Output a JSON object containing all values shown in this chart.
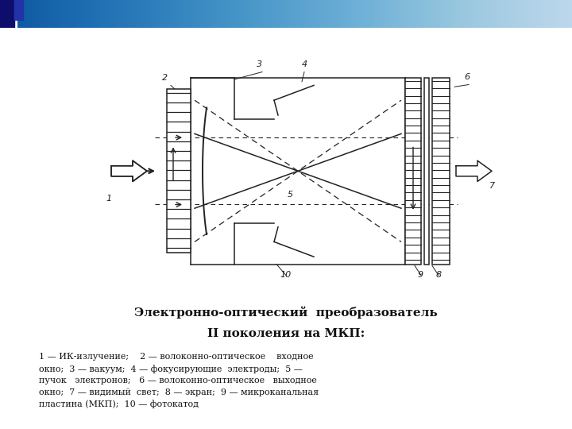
{
  "title_line1": "Электронно-оптический  преобразователь",
  "title_line2": "II поколения на МКП:",
  "caption_text": "1 — ИК-излучение;    2 — волоконно-оптическое    входное\nокно;  3 — вакуум;  4 — фокусирующие  электроды;  5 —\nпучок   электронов;   6 — волоконно-оптическое   выходное\nокно;  7 — видимый  свет;  8 — экран;  9 — микроканальная\nпластина (МКП);  10 — фотокатод",
  "bg_color": "#ffffff",
  "line_color": "#222222",
  "fig_width": 7.2,
  "fig_height": 5.4,
  "header_dark": "#1a1a7a",
  "header_mid": "#4455aa",
  "header_light": "#aabbdd"
}
